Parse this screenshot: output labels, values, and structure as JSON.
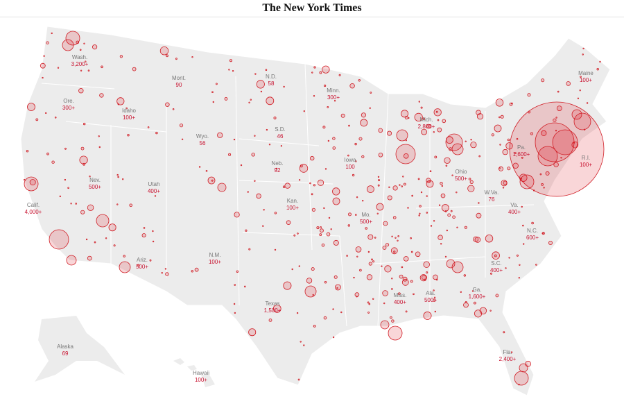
{
  "header": {
    "title": "The New York Times"
  },
  "labels": [
    {
      "name": "Wash.",
      "value": "3,200+"
    },
    {
      "name": "Mont.",
      "value": "90"
    },
    {
      "name": "N.D.",
      "value": "58"
    },
    {
      "name": "Minn.",
      "value": "300+"
    },
    {
      "name": "Maine",
      "value": "100+"
    },
    {
      "name": "Ore.",
      "value": "300+"
    },
    {
      "name": "Idaho",
      "value": "100+"
    },
    {
      "name": "Wyo.",
      "value": "56"
    },
    {
      "name": "S.D.",
      "value": "46"
    },
    {
      "name": "Mich.",
      "value": "2,800+"
    },
    {
      "name": "Pa.",
      "value": "1,600+"
    },
    {
      "name": "R.I.",
      "value": "100+"
    },
    {
      "name": "Iowa",
      "value": "100"
    },
    {
      "name": "Neb.",
      "value": "92"
    },
    {
      "name": "Nev.",
      "value": "500+"
    },
    {
      "name": "Utah",
      "value": "400+"
    },
    {
      "name": "Ohio",
      "value": "500+"
    },
    {
      "name": "W.Va.",
      "value": "76"
    },
    {
      "name": "Va.",
      "value": "400+"
    },
    {
      "name": "Calif.",
      "value": "4,000+"
    },
    {
      "name": "Kan.",
      "value": "100+"
    },
    {
      "name": "Mo.",
      "value": "500+"
    },
    {
      "name": "N.C.",
      "value": "600+"
    },
    {
      "name": "Ariz.",
      "value": "500+"
    },
    {
      "name": "N.M.",
      "value": "100+"
    },
    {
      "name": "S.C.",
      "value": "400+"
    },
    {
      "name": "Ga.",
      "value": "1,600+"
    },
    {
      "name": "Ala.",
      "value": "500+"
    },
    {
      "name": "Miss.",
      "value": "400+"
    },
    {
      "name": "Texas",
      "value": "1,500+"
    },
    {
      "name": "Fla.",
      "value": "2,400+"
    },
    {
      "name": "Alaska",
      "value": "69"
    },
    {
      "name": "Hawaii",
      "value": "100+"
    }
  ]
}
